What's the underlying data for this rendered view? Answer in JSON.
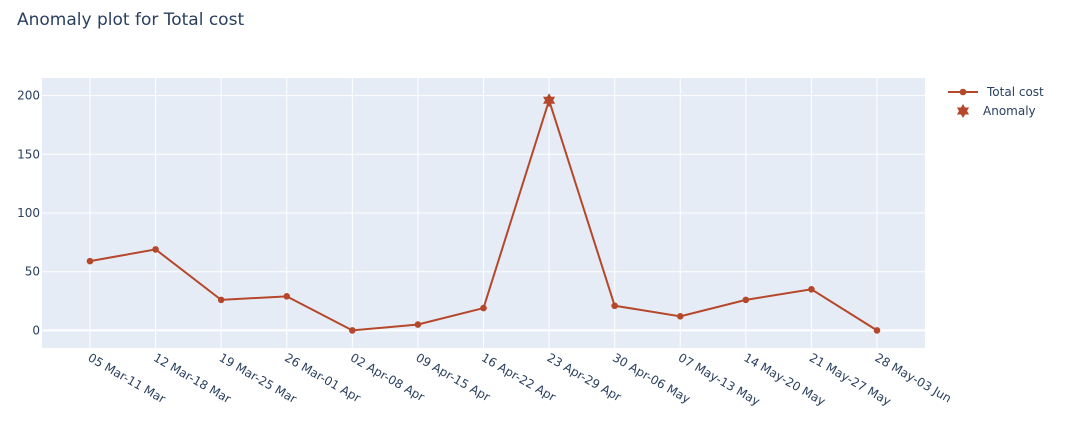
{
  "chart_data": {
    "type": "line",
    "title": "Anomaly plot for Total cost",
    "categories": [
      "05 Mar-11 Mar",
      "12 Mar-18 Mar",
      "19 Mar-25 Mar",
      "26 Mar-01 Apr",
      "02 Apr-08 Apr",
      "09 Apr-15 Apr",
      "16 Apr-22 Apr",
      "23 Apr-29 Apr",
      "30 Apr-06 May",
      "07 May-13 May",
      "14 May-20 May",
      "21 May-27 May",
      "28 May-03 Jun"
    ],
    "series": [
      {
        "name": "Total cost",
        "values": [
          59,
          69,
          26,
          29,
          0,
          5,
          19,
          196,
          21,
          12,
          26,
          35,
          0
        ],
        "color": "#b5472a",
        "marker": "circle"
      },
      {
        "name": "Anomaly",
        "points": [
          {
            "category": "23 Apr-29 Apr",
            "value": 196
          }
        ],
        "color": "#b5472a",
        "marker": "star-of-david"
      }
    ],
    "ylim": [
      -15,
      215
    ],
    "yticks": [
      0,
      50,
      100,
      150,
      200
    ],
    "xlabel": "",
    "ylabel": "",
    "grid": true,
    "legend": "top-right",
    "plot_bg": "#e5ecf6"
  }
}
